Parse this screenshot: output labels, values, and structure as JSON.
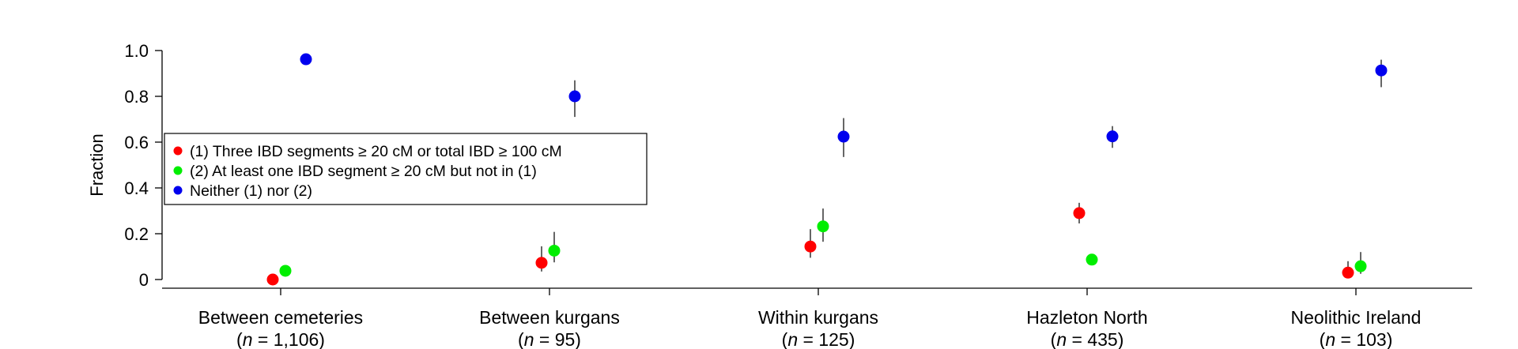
{
  "chart_data": {
    "type": "scatter",
    "ylabel": "Fraction",
    "ylim": [
      0,
      1
    ],
    "yticks": [
      0,
      0.2,
      0.4,
      0.6,
      0.8,
      1.0
    ],
    "ytick_labels": [
      "0",
      "0.2",
      "0.4",
      "0.6",
      "0.8",
      "1.0"
    ],
    "categories": [
      {
        "name": "Between cemeteries",
        "n_prefix": "(",
        "n_var": "n",
        "n_text": " = 1,106)"
      },
      {
        "name": "Between kurgans",
        "n_prefix": "(",
        "n_var": "n",
        "n_text": " = 95)"
      },
      {
        "name": "Within kurgans",
        "n_prefix": "(",
        "n_var": "n",
        "n_text": " = 125)"
      },
      {
        "name": "Hazleton North",
        "n_prefix": "(",
        "n_var": "n",
        "n_text": " = 435)"
      },
      {
        "name": "Neolithic Ireland",
        "n_prefix": "(",
        "n_var": "n",
        "n_text": " = 103)"
      }
    ],
    "series": [
      {
        "name": "(1) Three IBD segments ≥ 20 cM or total IBD ≥ 100 cM",
        "color": "#ff0000",
        "values": [
          0.0,
          0.073,
          0.144,
          0.29,
          0.03
        ],
        "err_low": [
          0.0,
          0.035,
          0.095,
          0.245,
          0.01
        ],
        "err_high": [
          0.0,
          0.145,
          0.22,
          0.335,
          0.08
        ]
      },
      {
        "name": "(2) At least one IBD segment ≥ 20 cM but not in (1)",
        "color": "#00ee00",
        "values": [
          0.038,
          0.126,
          0.232,
          0.087,
          0.058
        ],
        "err_low": [
          0.03,
          0.075,
          0.165,
          0.075,
          0.025
        ],
        "err_high": [
          0.045,
          0.208,
          0.31,
          0.105,
          0.12
        ]
      },
      {
        "name": "Neither (1) nor (2)",
        "color": "#0000ee",
        "values": [
          0.962,
          0.8,
          0.624,
          0.625,
          0.913
        ],
        "err_low": [
          0.955,
          0.71,
          0.535,
          0.575,
          0.84
        ],
        "err_high": [
          0.968,
          0.87,
          0.705,
          0.67,
          0.96
        ]
      }
    ],
    "legend_position": "left-center"
  }
}
